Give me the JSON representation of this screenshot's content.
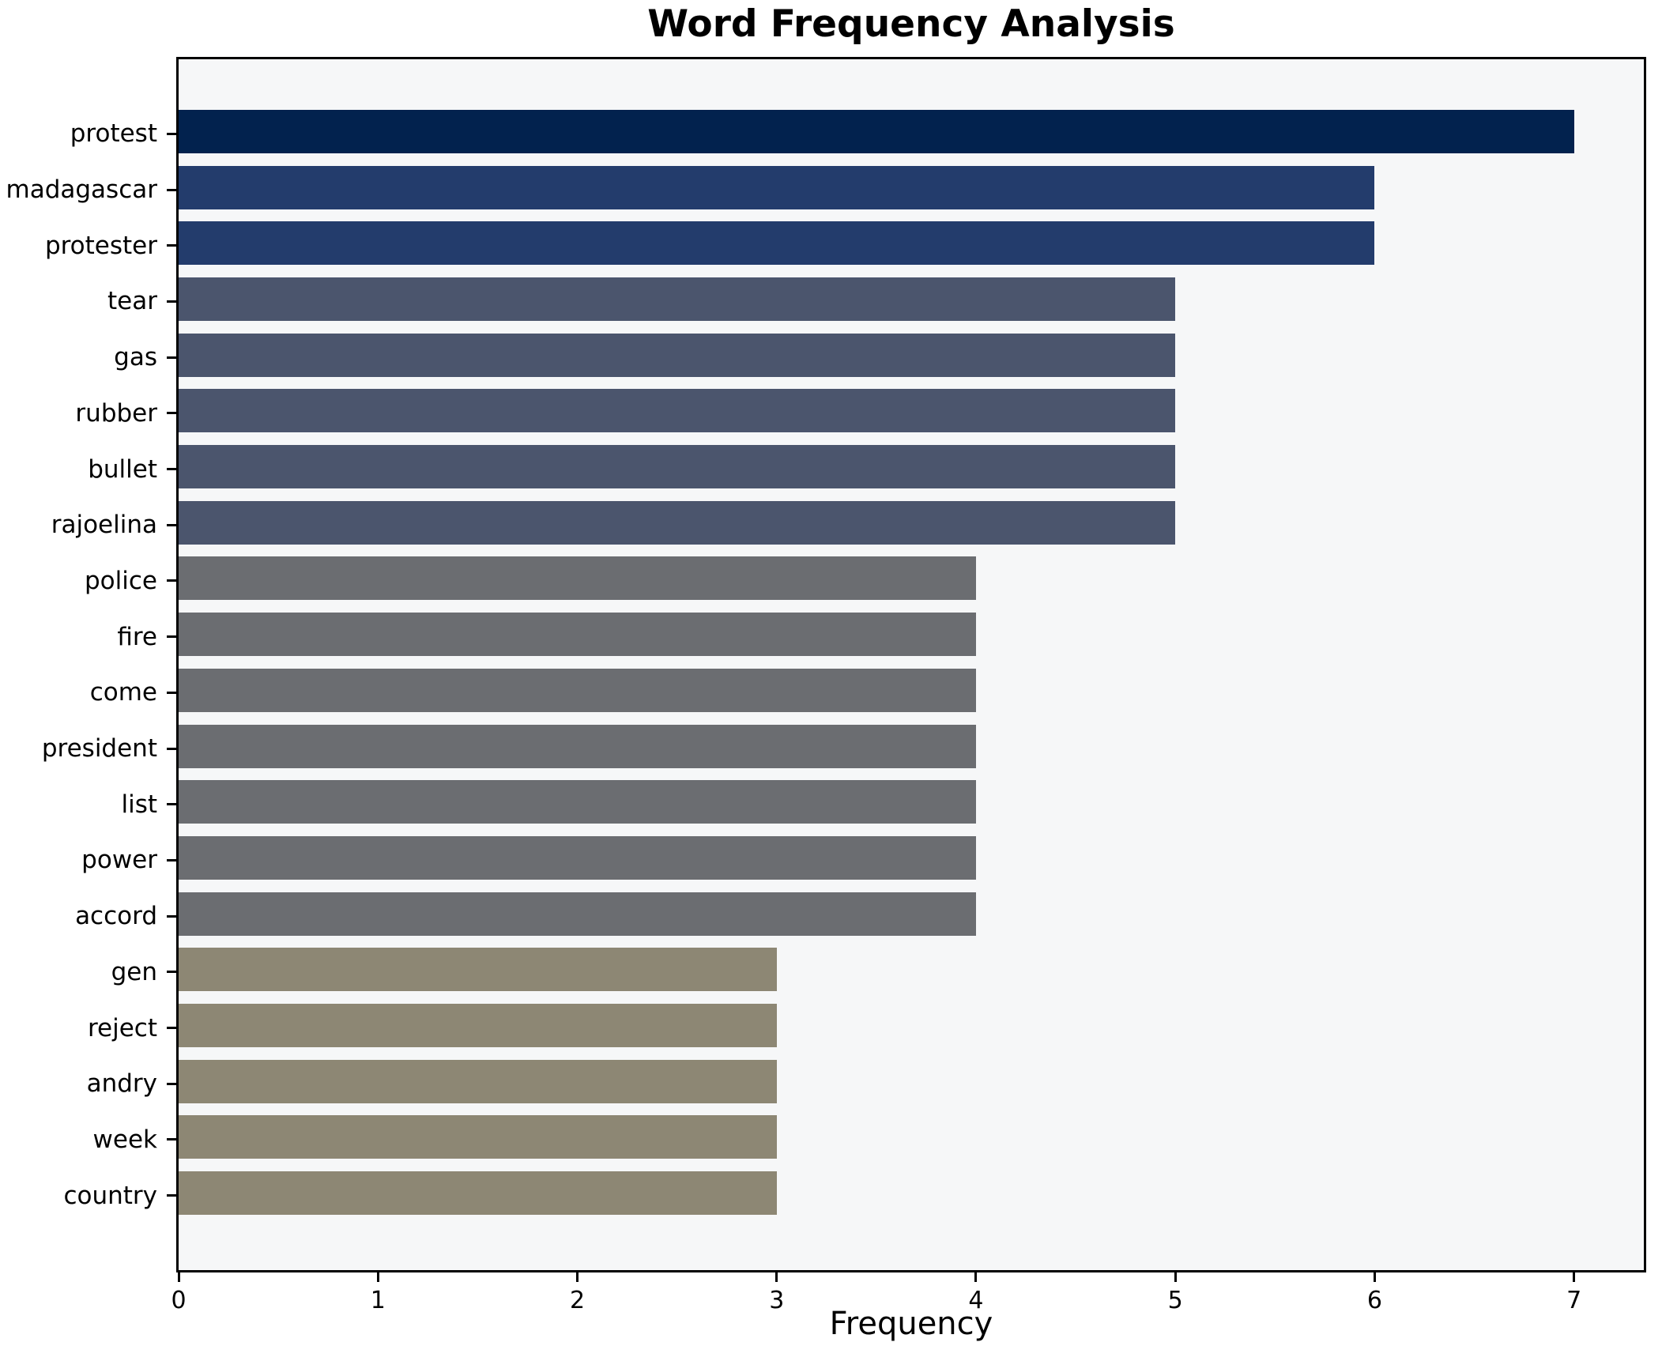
{
  "title": "Word Frequency Analysis",
  "chart_data": {
    "type": "bar",
    "orientation": "horizontal",
    "title": "Word Frequency Analysis",
    "xlabel": "Frequency",
    "ylabel": "",
    "categories": [
      "protest",
      "madagascar",
      "protester",
      "tear",
      "gas",
      "rubber",
      "bullet",
      "rajoelina",
      "police",
      "fire",
      "come",
      "president",
      "list",
      "power",
      "accord",
      "gen",
      "reject",
      "andry",
      "week",
      "country"
    ],
    "values": [
      7,
      6,
      6,
      5,
      5,
      5,
      5,
      5,
      4,
      4,
      4,
      4,
      4,
      4,
      4,
      3,
      3,
      3,
      3,
      3
    ],
    "bar_colors": [
      "#02224e",
      "#233c6c",
      "#233c6c",
      "#4b556d",
      "#4b556d",
      "#4b556d",
      "#4b556d",
      "#4b556d",
      "#6b6d71",
      "#6b6d71",
      "#6b6d71",
      "#6b6d71",
      "#6b6d71",
      "#6b6d71",
      "#6b6d71",
      "#8d8774",
      "#8d8774",
      "#8d8774",
      "#8d8774",
      "#8d8774"
    ],
    "xticks": [
      0,
      1,
      2,
      3,
      4,
      5,
      6,
      7
    ],
    "xlim": [
      0,
      7.35
    ],
    "grid": false,
    "legend": "none",
    "plot_background": "#f6f7f8",
    "figure_background": "#ffffff"
  }
}
